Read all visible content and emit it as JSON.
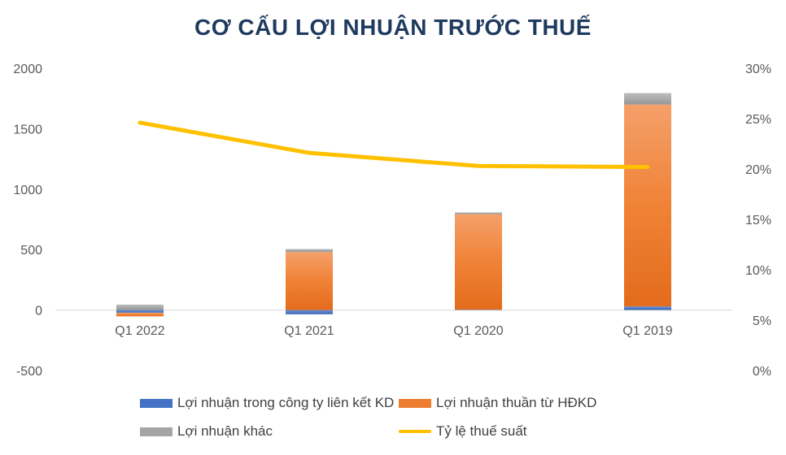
{
  "chart_data": {
    "type": "bar",
    "stacked": true,
    "title": "CƠ CẤU LỢI NHUẬN TRƯỚC THUẾ",
    "categories": [
      "Q1 2022",
      "Q1 2021",
      "Q1 2020",
      "Q1 2019"
    ],
    "y_left": {
      "ylim": [
        -500,
        2000
      ],
      "ticks": [
        "-500",
        "0",
        "500",
        "1000",
        "1500",
        "2000"
      ]
    },
    "y_right": {
      "ylim": [
        0,
        30
      ],
      "ticks": [
        "0%",
        "5%",
        "10%",
        "15%",
        "20%",
        "25%",
        "30%"
      ]
    },
    "series": [
      {
        "name": "Lợi nhuận trong công ty liên kết KD",
        "kind": "bar",
        "axis": "left",
        "color": "#4472c4",
        "values": [
          -22,
          -35,
          3,
          30
        ]
      },
      {
        "name": "Lợi nhuận thuần từ HĐKD",
        "kind": "bar",
        "axis": "left",
        "color": "#ed7d31",
        "values": [
          -30,
          480,
          790,
          1670
        ]
      },
      {
        "name": "Lợi nhuận khác",
        "kind": "bar",
        "axis": "left",
        "color": "#a5a5a5",
        "values": [
          45,
          25,
          15,
          95
        ]
      },
      {
        "name": "Tỷ lệ thuế suất",
        "kind": "line",
        "axis": "right",
        "color": "#ffc000",
        "values": [
          24.6,
          21.6,
          20.3,
          20.2
        ]
      }
    ],
    "grid": false,
    "legend_position": "bottom"
  }
}
